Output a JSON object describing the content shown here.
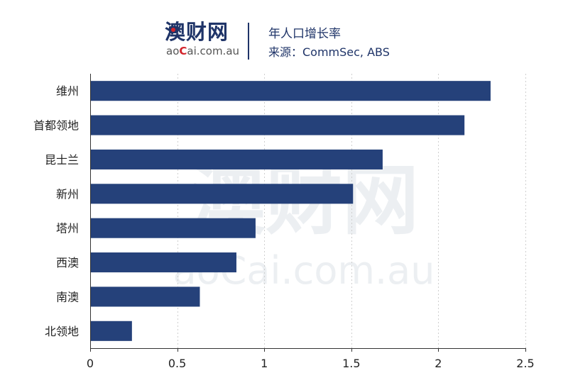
{
  "header": {
    "logo_cn": "澳财网",
    "logo_en_pre": "ao",
    "logo_en_c": "C",
    "logo_en_post": "ai.com.au",
    "title": "年人口增长率",
    "source": "来源：CommSec, ABS"
  },
  "watermark": {
    "cn": "澳财网",
    "en": "aoCai.com.au"
  },
  "colors": {
    "bar": "#25417a",
    "brand": "#1f3468",
    "accent": "#d2232a"
  },
  "chart_data": {
    "type": "bar",
    "orientation": "horizontal",
    "title": "年人口增长率",
    "categories": [
      "维州",
      "首都领地",
      "昆士兰",
      "新州",
      "塔州",
      "西澳",
      "南澳",
      "北领地"
    ],
    "values": [
      2.3,
      2.15,
      1.68,
      1.51,
      0.95,
      0.84,
      0.63,
      0.24
    ],
    "xticks": [
      "0",
      "0.5",
      "1",
      "1.5",
      "2",
      "2.5"
    ],
    "xlim": [
      0,
      2.5
    ],
    "grid": "vertical dotted"
  }
}
